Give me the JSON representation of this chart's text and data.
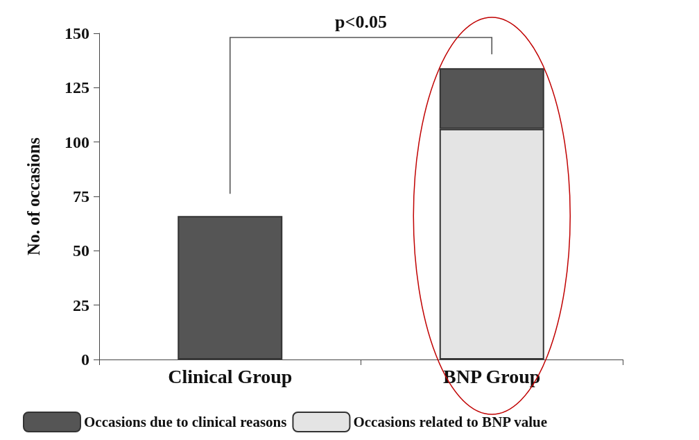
{
  "chart_data": {
    "type": "bar",
    "stacked": true,
    "categories": [
      "Clinical Group",
      "BNP Group"
    ],
    "ylabel": "No. of occasions",
    "series": [
      {
        "name": "Occasions related to BNP value",
        "color": "#e4e4e4",
        "values": [
          null,
          106
        ]
      },
      {
        "name": "Occasions due to clinical reasons",
        "color": "#555555",
        "values": [
          66,
          28
        ]
      }
    ],
    "ylim": [
      0,
      150
    ],
    "yticks": [
      0,
      25,
      50,
      75,
      100,
      125,
      150
    ],
    "grid": false,
    "legend": "bottom",
    "annotations": [
      "p<0.05"
    ]
  }
}
